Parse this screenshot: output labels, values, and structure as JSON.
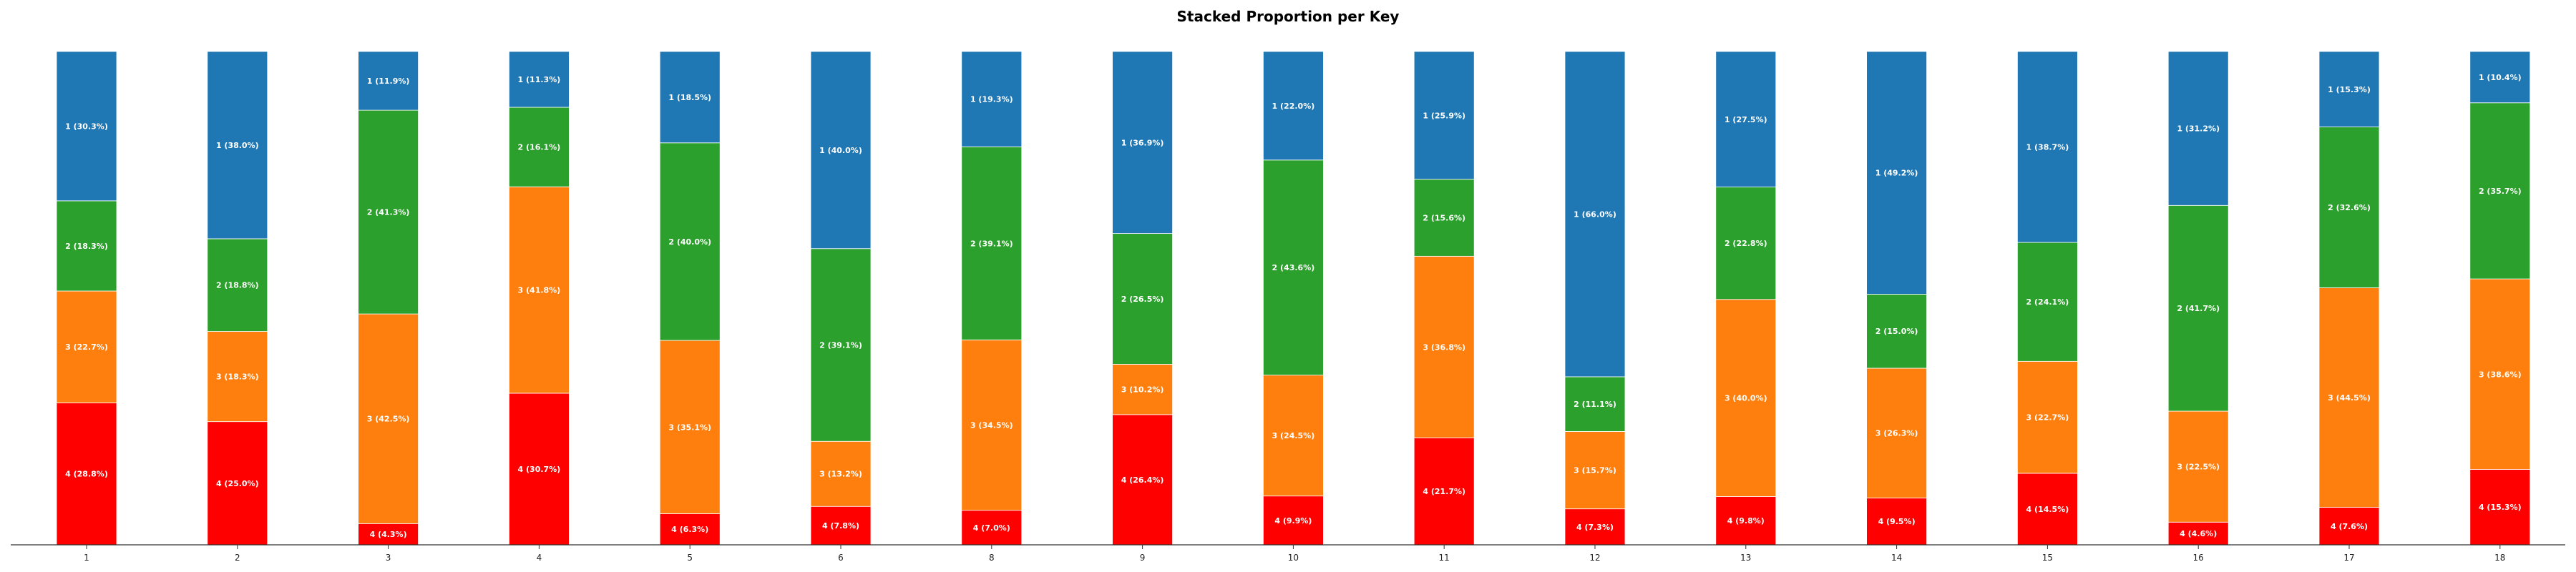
{
  "chart_data": {
    "type": "bar",
    "stacked": true,
    "title": "Stacked Proportion per Key",
    "categories": [
      "1",
      "2",
      "3",
      "4",
      "5",
      "6",
      "8",
      "9",
      "10",
      "11",
      "12",
      "13",
      "14",
      "15",
      "16",
      "17",
      "18"
    ],
    "ylim": [
      0,
      100
    ],
    "grid": false,
    "legend": "none",
    "series": [
      {
        "name": "4",
        "color": "#ff0000",
        "values": [
          28.8,
          25.0,
          4.3,
          30.7,
          6.3,
          7.8,
          7.0,
          26.4,
          9.9,
          21.7,
          7.3,
          9.8,
          9.5,
          14.5,
          4.6,
          7.6,
          15.3
        ],
        "labels": [
          "4 (28.8%)",
          "4 (25.0%)",
          "4 (4.3%)",
          "4 (30.7%)",
          "4 (6.3%)",
          "4 (7.8%)",
          "4 (7.0%)",
          "4 (26.4%)",
          "4 (9.9%)",
          "4 (21.7%)",
          "4 (7.3%)",
          "4 (9.8%)",
          "4 (9.5%)",
          "4 (14.5%)",
          "4 (4.6%)",
          "4 (7.6%)",
          "4 (15.3%)"
        ]
      },
      {
        "name": "3",
        "color": "#ff7f0e",
        "values": [
          22.7,
          18.3,
          42.5,
          41.8,
          35.1,
          13.2,
          34.5,
          10.2,
          24.5,
          36.8,
          15.7,
          40.0,
          26.3,
          22.7,
          22.5,
          44.5,
          38.6
        ],
        "labels": [
          "3 (22.7%)",
          "3 (18.3%)",
          "3 (42.5%)",
          "3 (41.8%)",
          "3 (35.1%)",
          "3 (13.2%)",
          "3 (34.5%)",
          "3 (10.2%)",
          "3 (24.5%)",
          "3 (36.8%)",
          "3 (15.7%)",
          "3 (40.0%)",
          "3 (26.3%)",
          "3 (22.7%)",
          "3 (22.5%)",
          "3 (44.5%)",
          "3 (38.6%)"
        ]
      },
      {
        "name": "2",
        "color": "#2ca02c",
        "values": [
          18.3,
          18.8,
          41.3,
          16.1,
          40.0,
          39.1,
          39.1,
          26.5,
          43.6,
          15.6,
          11.1,
          22.8,
          15.0,
          24.1,
          41.7,
          32.6,
          35.7
        ],
        "labels": [
          "2 (18.3%)",
          "2 (18.8%)",
          "2 (41.3%)",
          "2 (16.1%)",
          "2 (40.0%)",
          "2 (39.1%)",
          "2 (39.1%)",
          "2 (26.5%)",
          "2 (43.6%)",
          "2 (15.6%)",
          "2 (11.1%)",
          "2 (22.8%)",
          "2 (15.0%)",
          "2 (24.1%)",
          "2 (41.7%)",
          "2 (32.6%)",
          "2 (35.7%)"
        ]
      },
      {
        "name": "1",
        "color": "#1f77b4",
        "values": [
          30.3,
          38.0,
          11.9,
          11.3,
          18.5,
          40.0,
          19.3,
          36.9,
          22.0,
          25.9,
          66.0,
          27.5,
          49.2,
          38.7,
          31.2,
          15.3,
          10.4
        ],
        "labels": [
          "1 (30.3%)",
          "1 (38.0%)",
          "1 (11.9%)",
          "1 (11.3%)",
          "1 (18.5%)",
          "1 (40.0%)",
          "1 (19.3%)",
          "1 (36.9%)",
          "1 (22.0%)",
          "1 (25.9%)",
          "1 (66.0%)",
          "1 (27.5%)",
          "1 (49.2%)",
          "1 (38.7%)",
          "1 (31.2%)",
          "1 (15.3%)",
          "1 (10.4%)"
        ]
      }
    ]
  }
}
